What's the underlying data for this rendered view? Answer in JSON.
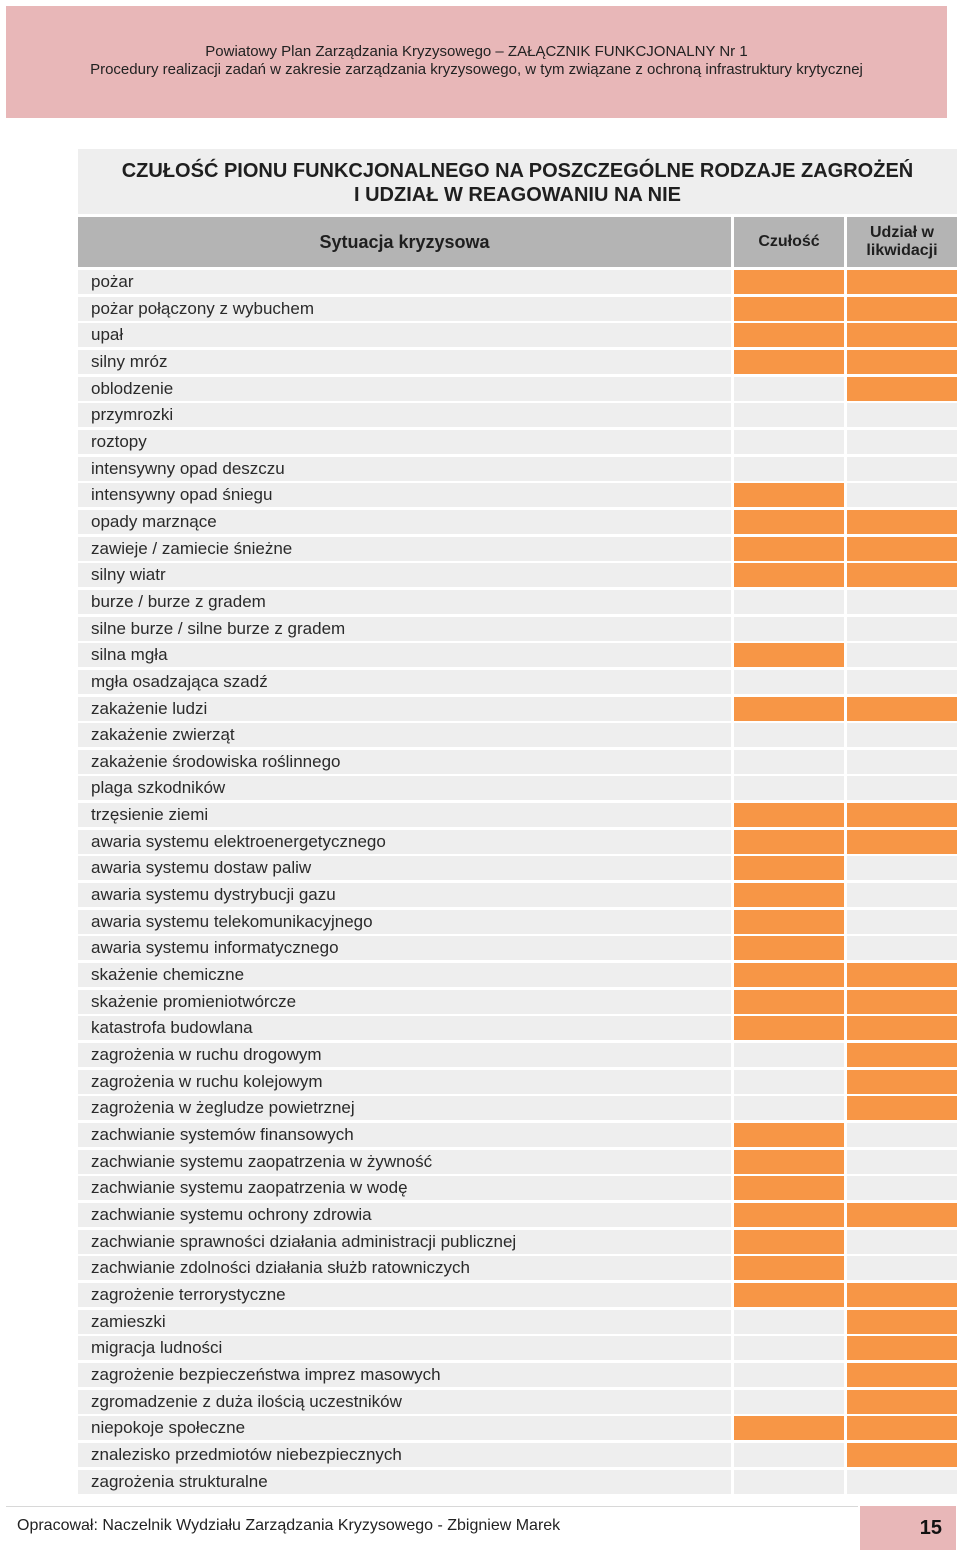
{
  "header": {
    "line1": "Powiatowy Plan Zarządzania Kryzysowego – ZAŁĄCZNIK FUNKCJONALNY Nr 1",
    "line2": "Procedury realizacji zadań w zakresie zarządzania kryzysowego, w tym związane z ochroną infrastruktury krytycznej"
  },
  "title": {
    "line1": "CZUŁOŚĆ PIONU FUNKCJONALNEGO NA POSZCZEGÓLNE RODZAJE ZAGROŻEŃ",
    "line2": "I UDZIAŁ W REAGOWANIU NA NIE"
  },
  "columns": {
    "situation": "Sytuacja kryzysowa",
    "sensitivity": "Czułość",
    "participation": "Udział w likwidacji"
  },
  "colors": {
    "marked": "#f79646",
    "unmarked": "#eeeeee",
    "header": "#b4b4b4",
    "band": "#e8b7b8"
  },
  "rows": [
    {
      "name": "pożar",
      "czulosc": true,
      "udzial": true
    },
    {
      "name": "pożar połączony z wybuchem",
      "czulosc": true,
      "udzial": true
    },
    {
      "name": "upał",
      "czulosc": true,
      "udzial": true
    },
    {
      "name": "silny mróz",
      "czulosc": true,
      "udzial": true
    },
    {
      "name": "oblodzenie",
      "czulosc": false,
      "udzial": true
    },
    {
      "name": "przymrozki",
      "czulosc": false,
      "udzial": false
    },
    {
      "name": "roztopy",
      "czulosc": false,
      "udzial": false
    },
    {
      "name": "intensywny opad deszczu",
      "czulosc": false,
      "udzial": false
    },
    {
      "name": "intensywny opad śniegu",
      "czulosc": true,
      "udzial": false
    },
    {
      "name": "opady marznące",
      "czulosc": true,
      "udzial": true
    },
    {
      "name": "zawieje / zamiecie śnieżne",
      "czulosc": true,
      "udzial": true
    },
    {
      "name": "silny wiatr",
      "czulosc": true,
      "udzial": true
    },
    {
      "name": "burze / burze z gradem",
      "czulosc": false,
      "udzial": false
    },
    {
      "name": "silne burze / silne burze z gradem",
      "czulosc": false,
      "udzial": false
    },
    {
      "name": "silna mgła",
      "czulosc": true,
      "udzial": false
    },
    {
      "name": "mgła osadzająca szadź",
      "czulosc": false,
      "udzial": false
    },
    {
      "name": "zakażenie ludzi",
      "czulosc": true,
      "udzial": true
    },
    {
      "name": "zakażenie zwierząt",
      "czulosc": false,
      "udzial": false
    },
    {
      "name": "zakażenie środowiska roślinnego",
      "czulosc": false,
      "udzial": false
    },
    {
      "name": "plaga szkodników",
      "czulosc": false,
      "udzial": false
    },
    {
      "name": "trzęsienie ziemi",
      "czulosc": true,
      "udzial": true
    },
    {
      "name": "awaria systemu elektroenergetycznego",
      "czulosc": true,
      "udzial": true
    },
    {
      "name": "awaria systemu dostaw paliw",
      "czulosc": true,
      "udzial": false
    },
    {
      "name": "awaria systemu dystrybucji gazu",
      "czulosc": true,
      "udzial": false
    },
    {
      "name": "awaria systemu telekomunikacyjnego",
      "czulosc": true,
      "udzial": false
    },
    {
      "name": "awaria systemu informatycznego",
      "czulosc": true,
      "udzial": false
    },
    {
      "name": "skażenie chemiczne",
      "czulosc": true,
      "udzial": true
    },
    {
      "name": "skażenie promieniotwórcze",
      "czulosc": true,
      "udzial": true
    },
    {
      "name": "katastrofa budowlana",
      "czulosc": true,
      "udzial": true
    },
    {
      "name": "zagrożenia w ruchu drogowym",
      "czulosc": false,
      "udzial": true
    },
    {
      "name": "zagrożenia w ruchu kolejowym",
      "czulosc": false,
      "udzial": true
    },
    {
      "name": "zagrożenia w żegludze powietrznej",
      "czulosc": false,
      "udzial": true
    },
    {
      "name": "zachwianie systemów finansowych",
      "czulosc": true,
      "udzial": false
    },
    {
      "name": "zachwianie systemu zaopatrzenia w żywność",
      "czulosc": true,
      "udzial": false
    },
    {
      "name": "zachwianie systemu zaopatrzenia w wodę",
      "czulosc": true,
      "udzial": false
    },
    {
      "name": "zachwianie systemu ochrony zdrowia",
      "czulosc": true,
      "udzial": true
    },
    {
      "name": "zachwianie sprawności działania administracji publicznej",
      "czulosc": true,
      "udzial": false
    },
    {
      "name": "zachwianie zdolności działania służb ratowniczych",
      "czulosc": true,
      "udzial": false
    },
    {
      "name": "zagrożenie terrorystyczne",
      "czulosc": true,
      "udzial": true
    },
    {
      "name": "zamieszki",
      "czulosc": false,
      "udzial": true
    },
    {
      "name": "migracja ludności",
      "czulosc": false,
      "udzial": true
    },
    {
      "name": "zagrożenie bezpieczeństwa imprez masowych",
      "czulosc": false,
      "udzial": true
    },
    {
      "name": "zgromadzenie z duża ilością uczestników",
      "czulosc": false,
      "udzial": true
    },
    {
      "name": "niepokoje społeczne",
      "czulosc": true,
      "udzial": true
    },
    {
      "name": "znalezisko przedmiotów niebezpiecznych",
      "czulosc": false,
      "udzial": true
    },
    {
      "name": "zagrożenia strukturalne",
      "czulosc": false,
      "udzial": false
    }
  ],
  "footer": {
    "author": "Opracował: Naczelnik Wydziału Zarządzania Kryzysowego - Zbigniew Marek",
    "page_number": "15"
  }
}
